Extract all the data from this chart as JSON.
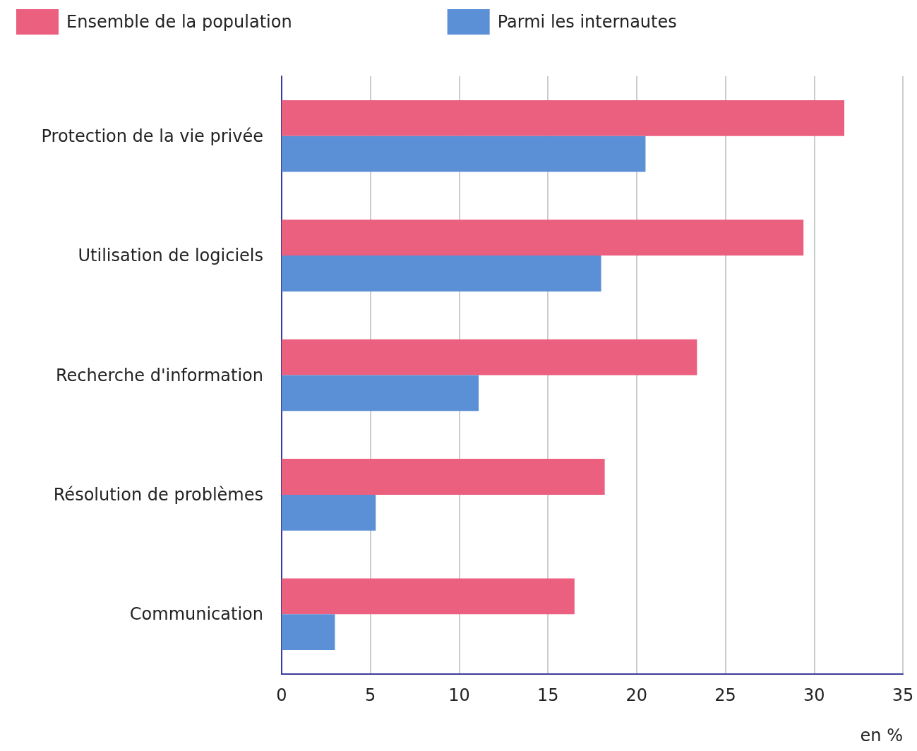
{
  "chart_data": {
    "type": "bar",
    "orientation": "horizontal",
    "xlabel": "en %",
    "categories": [
      "Protection de la vie privée",
      "Utilisation de logiciels",
      "Recherche d'information",
      "Résolution de problèmes",
      "Communication"
    ],
    "series": [
      {
        "name": "Ensemble de la population",
        "color": "#eb5f7f",
        "values": [
          31.7,
          29.4,
          23.4,
          18.2,
          16.5
        ]
      },
      {
        "name": "Parmi les internautes",
        "color": "#5b8fd6",
        "values": [
          20.5,
          18.0,
          11.1,
          5.3,
          3.0
        ]
      }
    ],
    "xlim": [
      0,
      35
    ],
    "xticks": [
      0,
      5,
      10,
      15,
      20,
      25,
      30,
      35
    ],
    "grid": "x",
    "legend": "top left"
  }
}
